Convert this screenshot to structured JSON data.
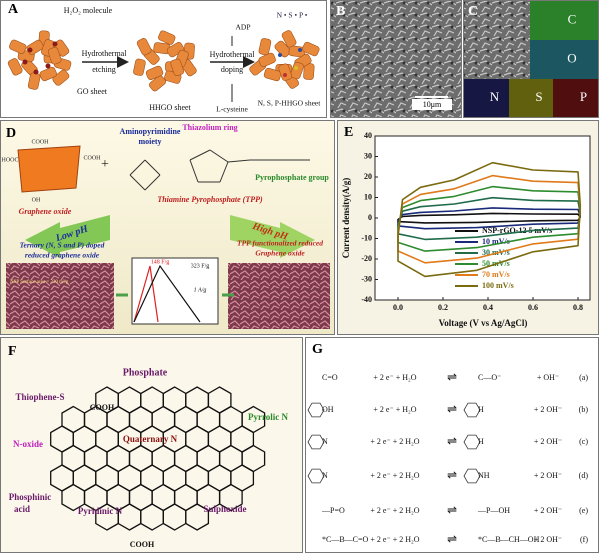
{
  "A": {
    "label": "A",
    "h2o2": "H₂O₂ molecule",
    "go": "GO sheet",
    "hydrothermal_1": "Hydrothermal",
    "etching": "etching",
    "hhgo": "HHGO sheet",
    "adp": "ADP",
    "hydrothermal_2": "Hydrothermal",
    "doping": "doping",
    "cysteine": "L-cysteine",
    "dopants": "N • S • P •",
    "product": "N, S, P-HHGO sheet"
  },
  "B": {
    "label": "B",
    "scale": "10μm"
  },
  "C": {
    "label": "C",
    "maps": [
      "C",
      "O",
      "N",
      "S",
      "P"
    ]
  },
  "D": {
    "label": "D",
    "cooh": "COOH",
    "hooc": "HOOC",
    "oh": "OH",
    "graphene_oxide": "Graphene oxide",
    "aminopyrimidine": "Aminopyrimidine",
    "moiety": "moiety",
    "thiazolium": "Thiazolium ring",
    "pyrophosphate": "Pyrophosphate group",
    "tpp": "Thiamine Pyrophosphate (TPP)",
    "low_ph": "Low pH",
    "high_ph": "High pH",
    "ternary_1": "Ternary (N, S and P) doped",
    "ternary_2": "reduced graphene oxide",
    "tpp_rgo_1": "TPP functionalized reduced",
    "tpp_rgo_2": "Graphene oxide",
    "area": "NSP Surface area = 230 m²/g",
    "c1": "148 F/g",
    "c2": "323 F/g",
    "current": "1 A/g"
  },
  "E": {
    "label": "E",
    "y_label": "Current density(A/g)",
    "x_label": "Voltage (V vs Ag/AgCl)",
    "yticks": [
      "40",
      "30",
      "20",
      "10",
      "0",
      "-10",
      "-20",
      "-30",
      "-40"
    ],
    "xticks": [
      "0.0",
      "0.2",
      "0.4",
      "0.6",
      "0.8"
    ],
    "series": [
      {
        "name": "NSP-rGO-12 5 mV/s",
        "color": "#111111"
      },
      {
        "name": "10 mV/s",
        "color": "#1a2a7a"
      },
      {
        "name": "30 mV/s",
        "color": "#1f6b4a"
      },
      {
        "name": "50 mV/s",
        "color": "#2e8b2e"
      },
      {
        "name": "70 mV/s",
        "color": "#e07a1a"
      },
      {
        "name": "100 mV/s",
        "color": "#7a6a10"
      }
    ]
  },
  "F": {
    "label": "F",
    "phosphate": "Phosphate",
    "thiophene": "Thiophene-S",
    "pyrrolic": "Pyrrolic N",
    "noxide": "N-oxide",
    "quaternary": "Quaternary N",
    "phosphinic_1": "Phosphinic",
    "phosphinic_2": "acid",
    "pyridinic": "Pyridinic N",
    "sulphoxide": "Sulphoxide",
    "cooh": "COOH"
  },
  "G": {
    "label": "G",
    "reactions": [
      [
        "C=O",
        "+ 2 e⁻ + H₂O",
        "⇌",
        "C—O⁻",
        "+ OH⁻",
        "(a)"
      ],
      [
        "OH",
        "+ 2 e⁻ + H₂O",
        "⇌",
        "H",
        "+ 2 OH⁻",
        "(b)"
      ],
      [
        "N",
        "+ 2 e⁻ + 2 H₂O",
        "⇌",
        "H",
        "+ 2 OH⁻",
        "(c)"
      ],
      [
        "N",
        "+ 2 e⁻ + 2 H₂O",
        "⇌",
        "NH",
        "+ 2 OH⁻",
        "(d)"
      ],
      [
        "—P=O",
        "+ 2 e⁻ + 2 H₂O",
        "⇌",
        "—P—OH",
        "+ 2 OH⁻",
        "(e)"
      ],
      [
        "*C—B—C=O",
        "+ 2 e⁻ + 2 H₂O",
        "⇌",
        "*C—B—CH—OH",
        "+ 2 OH⁻",
        "(f)"
      ]
    ]
  }
}
